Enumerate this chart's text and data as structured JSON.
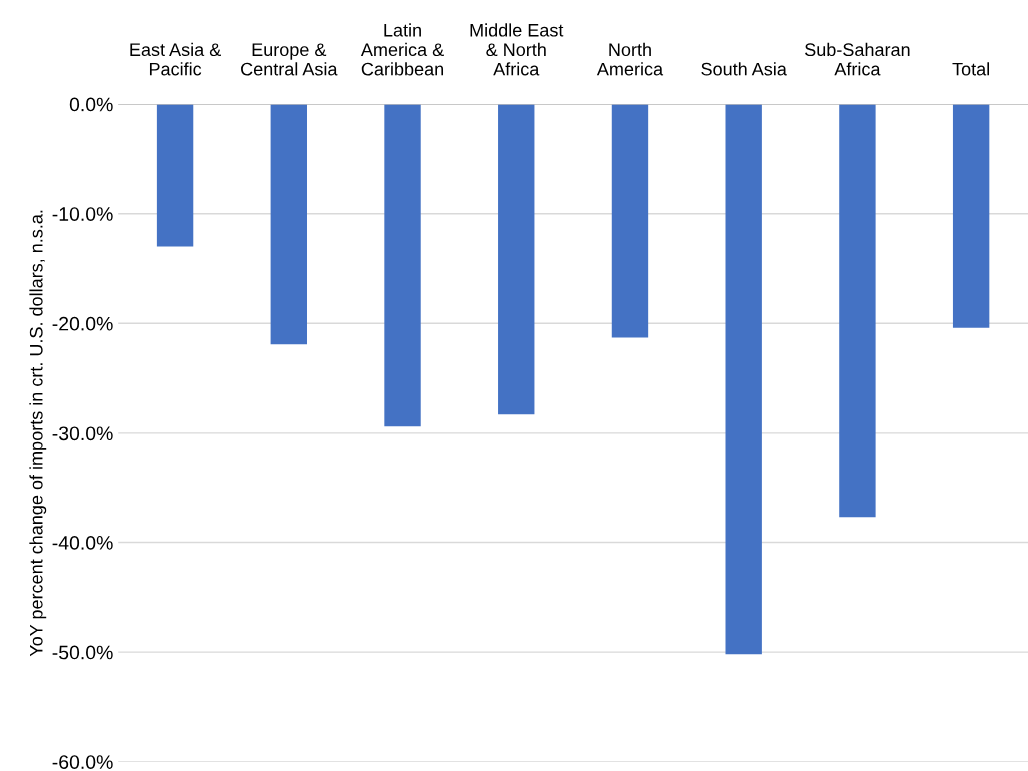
{
  "chart_data": {
    "type": "bar",
    "ylabel": "YoY percent change of imports in crt. U.S. dollars, n.s.a.",
    "categories": [
      "East Asia &\nPacific",
      "Europe &\nCentral Asia",
      "Latin\nAmerica &\nCaribbean",
      "Middle East\n& North\nAfrica",
      "North\nAmerica",
      "South Asia",
      "Sub-Saharan\nAfrica",
      "Total"
    ],
    "values": [
      -13.0,
      -21.9,
      -29.4,
      -28.3,
      -21.3,
      -50.2,
      -37.7,
      -20.4
    ],
    "color": "#4472c4",
    "ylim": [
      -60,
      0
    ],
    "yticks": [
      {
        "value": 0,
        "label": "0.0%"
      },
      {
        "value": -10,
        "label": "-10.0%"
      },
      {
        "value": -20,
        "label": "-20.0%"
      },
      {
        "value": -30,
        "label": "-30.0%"
      },
      {
        "value": -40,
        "label": "-40.0%"
      },
      {
        "value": -50,
        "label": "-50.0%"
      },
      {
        "value": -60,
        "label": "-60.0%"
      }
    ],
    "grid": "y"
  }
}
